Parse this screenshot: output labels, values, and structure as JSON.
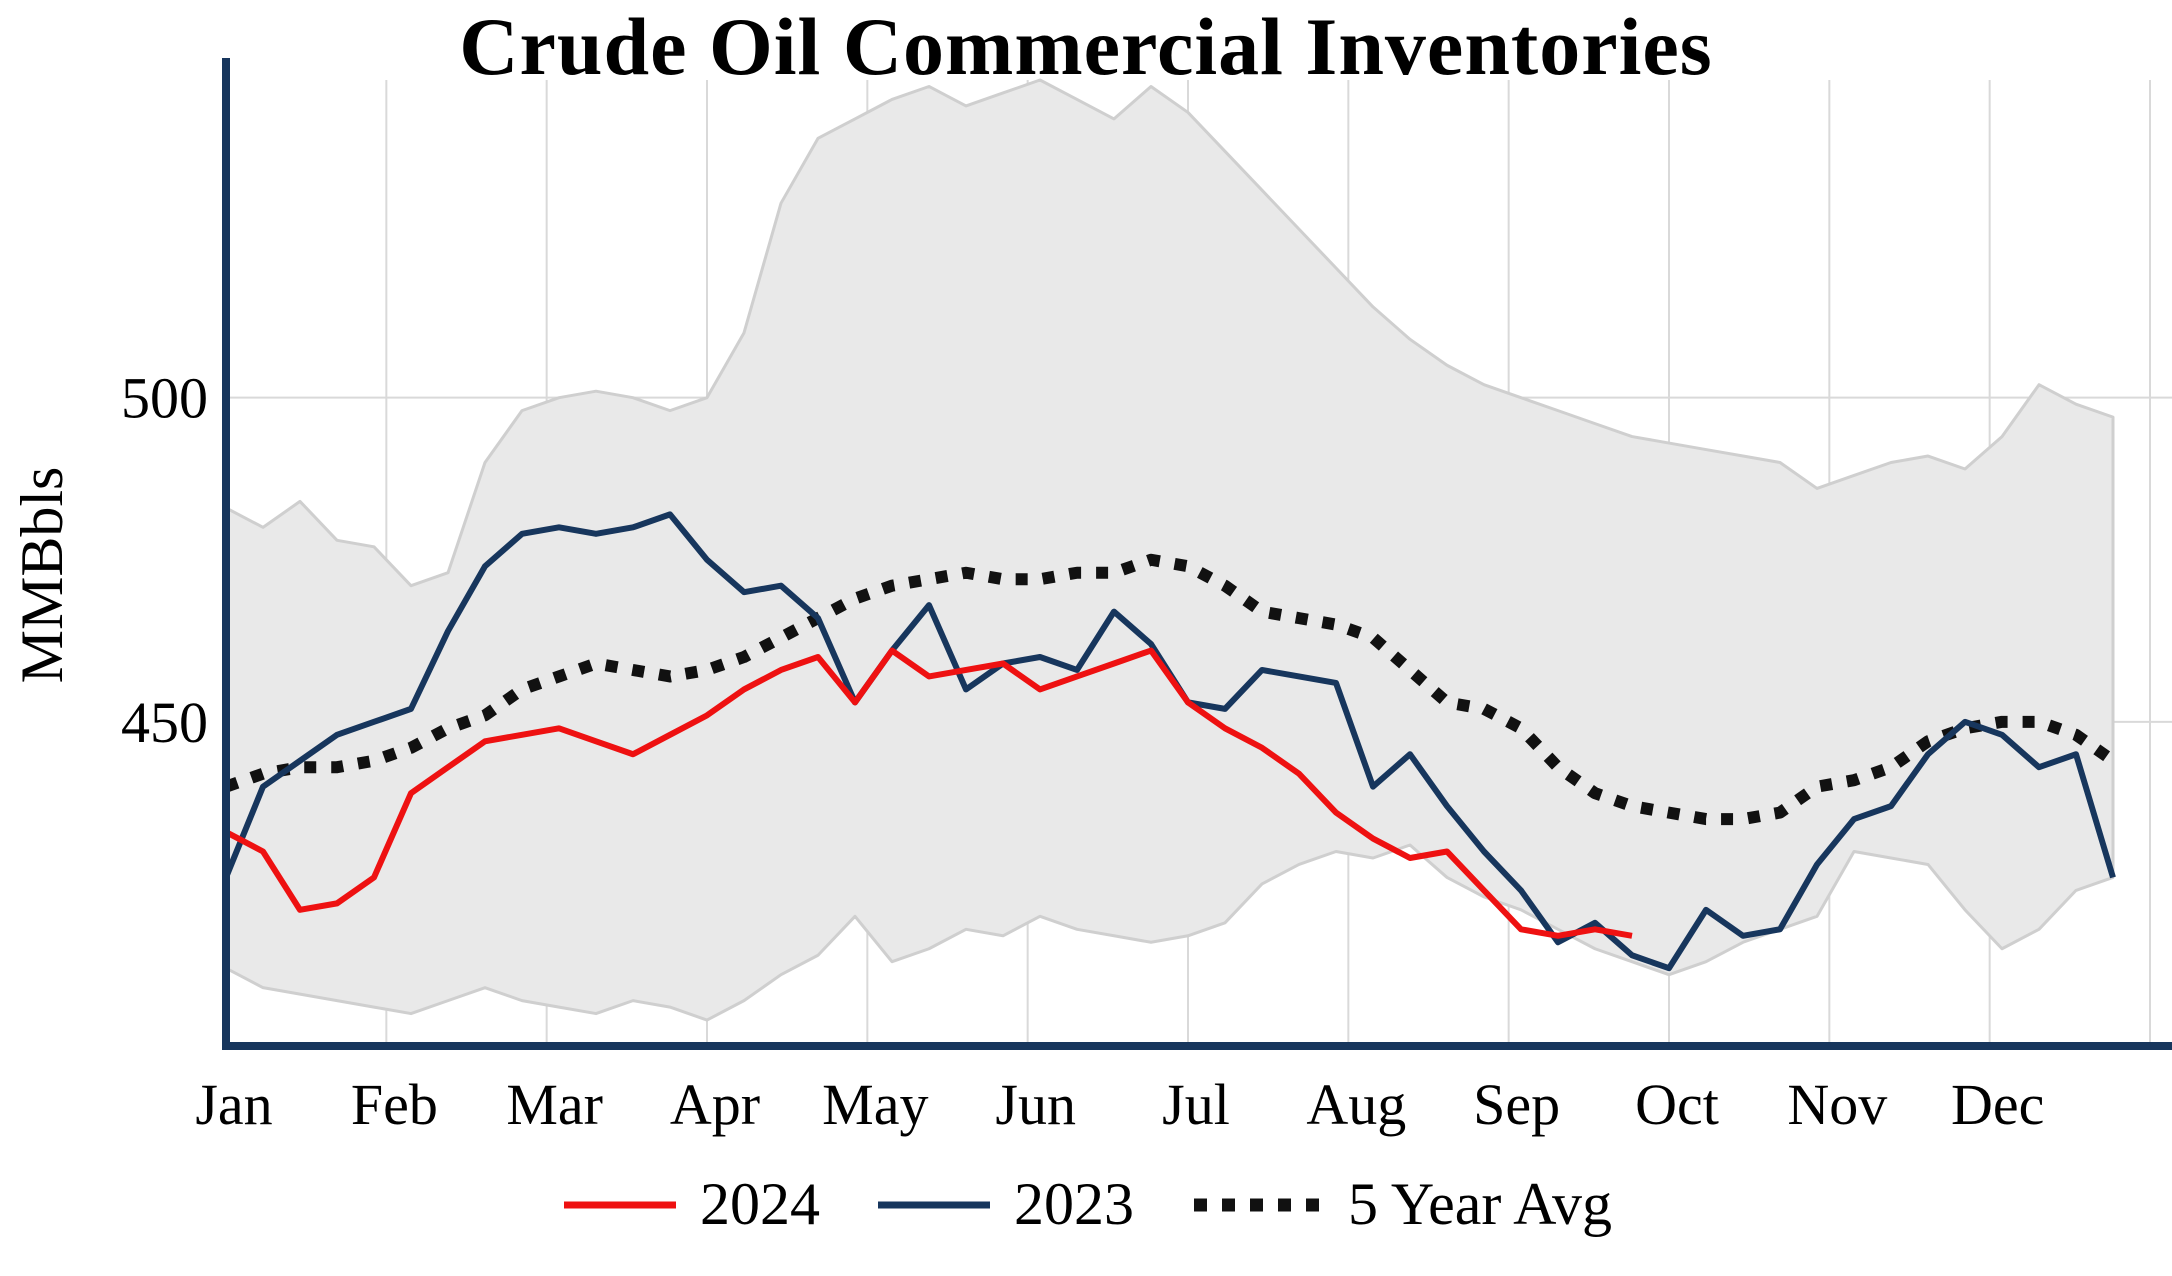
{
  "chart_data": {
    "type": "line",
    "title": "Crude Oil Commercial Inventories",
    "xlabel": "",
    "ylabel": "MMBbls",
    "x_unit": "weeks",
    "months": [
      "Jan",
      "Feb",
      "Mar",
      "Apr",
      "May",
      "Jun",
      "Jul",
      "Aug",
      "Sep",
      "Oct",
      "Nov",
      "Dec"
    ],
    "yticks": [
      450,
      500
    ],
    "ylim": [
      400,
      549
    ],
    "grid": "on",
    "legend_position": "bottom",
    "axis_color": "#17365d",
    "grid_color": "#d9d9d9",
    "series": [
      {
        "name": "2024",
        "color": "#ee1111",
        "style": "solid",
        "values": [
          433,
          430,
          421,
          422,
          426,
          439,
          443,
          447,
          448,
          449,
          447,
          445,
          448,
          451,
          455,
          458,
          460,
          453,
          461,
          457,
          458,
          459,
          455,
          457,
          459,
          461,
          453,
          449,
          446,
          442,
          436,
          432,
          429,
          430,
          424,
          418,
          417,
          418,
          417
        ]
      },
      {
        "name": "2023",
        "color": "#17365d",
        "style": "solid",
        "values": [
          426,
          440,
          444,
          448,
          450,
          452,
          464,
          474,
          479,
          480,
          479,
          480,
          482,
          475,
          470,
          471,
          466,
          453,
          461,
          468,
          455,
          459,
          460,
          458,
          467,
          462,
          453,
          452,
          458,
          457,
          456,
          440,
          445,
          437,
          430,
          424,
          416,
          419,
          414,
          412,
          421,
          417,
          418,
          428,
          435,
          437,
          445,
          450,
          448,
          443,
          445,
          426
        ]
      },
      {
        "name": "5 Year Avg",
        "color": "#111111",
        "style": "dotted",
        "values": [
          440,
          442,
          443,
          443,
          444,
          446,
          449,
          451,
          455,
          457,
          459,
          458,
          457,
          458,
          460,
          463,
          466,
          469,
          471,
          472,
          473,
          472,
          472,
          473,
          473,
          475,
          474,
          471,
          467,
          466,
          465,
          463,
          458,
          453,
          452,
          449,
          443,
          439,
          437,
          436,
          435,
          435,
          436,
          440,
          441,
          443,
          447,
          449,
          450,
          450,
          448,
          444
        ]
      }
    ],
    "band": {
      "name": "5 Year Range",
      "fill": "#e9e9e9",
      "edge": "#cfcfcf",
      "upper": [
        483,
        480,
        484,
        478,
        477,
        471,
        473,
        490,
        498,
        500,
        501,
        500,
        498,
        500,
        510,
        530,
        540,
        543,
        546,
        548,
        545,
        547,
        549,
        546,
        543,
        548,
        544,
        538,
        532,
        526,
        520,
        514,
        509,
        505,
        502,
        500,
        498,
        496,
        494,
        493,
        492,
        491,
        490,
        486,
        488,
        490,
        491,
        489,
        494,
        502,
        499,
        497
      ],
      "lower": [
        412,
        409,
        408,
        407,
        406,
        405,
        407,
        409,
        407,
        406,
        405,
        407,
        406,
        404,
        407,
        411,
        414,
        420,
        413,
        415,
        418,
        417,
        420,
        418,
        417,
        416,
        417,
        419,
        425,
        428,
        430,
        429,
        431,
        426,
        423,
        421,
        418,
        415,
        413,
        411,
        413,
        416,
        418,
        420,
        430,
        429,
        428,
        421,
        415,
        418,
        424,
        426
      ]
    }
  }
}
